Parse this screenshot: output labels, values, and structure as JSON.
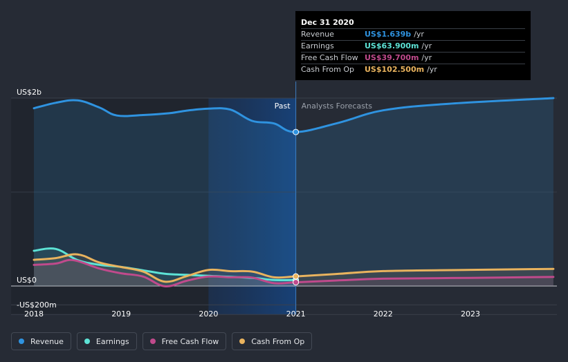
{
  "chart_data": {
    "type": "area",
    "x_axis": {
      "ticks": [
        "2018",
        "2019",
        "2020",
        "2021",
        "2022",
        "2023"
      ],
      "range": [
        "2018-01-01",
        "2023-12-31"
      ]
    },
    "y_axis": {
      "unit": "US$",
      "ticks": [
        {
          "value": 2000,
          "label": "US$2b"
        },
        {
          "value": 0,
          "label": "US$0"
        },
        {
          "value": -200,
          "label": "-US$200m"
        }
      ],
      "range": [
        -200,
        2000
      ]
    },
    "region_labels": {
      "past": "Past",
      "forecast": "Analysts Forecasts",
      "divider": 2021.0
    },
    "series": [
      {
        "name": "Revenue",
        "color": "#2f93e0",
        "points": [
          [
            2018.0,
            1892
          ],
          [
            2018.25,
            1950
          ],
          [
            2018.5,
            1976
          ],
          [
            2018.75,
            1900
          ],
          [
            2018.95,
            1815
          ],
          [
            2019.25,
            1820
          ],
          [
            2019.55,
            1839
          ],
          [
            2019.75,
            1867
          ],
          [
            2020.0,
            1888
          ],
          [
            2020.25,
            1878
          ],
          [
            2020.5,
            1757
          ],
          [
            2020.75,
            1730
          ],
          [
            2021.0,
            1639
          ],
          [
            2021.5,
            1740
          ],
          [
            2022.0,
            1870
          ],
          [
            2022.75,
            1940
          ],
          [
            2023.95,
            2000
          ]
        ]
      },
      {
        "name": "Earnings",
        "color": "#5de3d6",
        "points": [
          [
            2018.0,
            375
          ],
          [
            2018.25,
            395
          ],
          [
            2018.5,
            276
          ],
          [
            2018.75,
            226
          ],
          [
            2019.0,
            203
          ],
          [
            2019.25,
            167
          ],
          [
            2019.5,
            130
          ],
          [
            2019.75,
            119
          ],
          [
            2020.0,
            108
          ],
          [
            2020.5,
            86
          ],
          [
            2020.75,
            64
          ],
          [
            2021.0,
            63.9
          ]
        ]
      },
      {
        "name": "Free Cash Flow",
        "color": "#c04a8c",
        "points": [
          [
            2018.0,
            225
          ],
          [
            2018.25,
            239
          ],
          [
            2018.45,
            276
          ],
          [
            2018.75,
            186
          ],
          [
            2019.0,
            135
          ],
          [
            2019.25,
            101
          ],
          [
            2019.5,
            -3
          ],
          [
            2019.75,
            56
          ],
          [
            2020.0,
            101
          ],
          [
            2020.25,
            93
          ],
          [
            2020.5,
            90
          ],
          [
            2020.75,
            30
          ],
          [
            2021.0,
            39.7
          ],
          [
            2021.5,
            60
          ],
          [
            2022.0,
            78
          ],
          [
            2023.0,
            87
          ],
          [
            2023.95,
            96
          ]
        ]
      },
      {
        "name": "Cash From Op",
        "color": "#e9b35e",
        "points": [
          [
            2018.0,
            279
          ],
          [
            2018.25,
            297
          ],
          [
            2018.5,
            337
          ],
          [
            2018.75,
            250
          ],
          [
            2019.0,
            202
          ],
          [
            2019.25,
            154
          ],
          [
            2019.5,
            46
          ],
          [
            2019.75,
            105
          ],
          [
            2020.0,
            171
          ],
          [
            2020.25,
            158
          ],
          [
            2020.5,
            154
          ],
          [
            2020.75,
            93
          ],
          [
            2021.0,
            102.5
          ],
          [
            2021.5,
            130
          ],
          [
            2022.0,
            159
          ],
          [
            2023.0,
            172
          ],
          [
            2023.95,
            182
          ]
        ]
      }
    ]
  },
  "tooltip": {
    "date": "Dec 31 2020",
    "rows": [
      {
        "label": "Revenue",
        "value": "US$1.639b",
        "unit": "/yr",
        "color": "#2f93e0"
      },
      {
        "label": "Earnings",
        "value": "US$63.900m",
        "unit": "/yr",
        "color": "#5de3d6"
      },
      {
        "label": "Free Cash Flow",
        "value": "US$39.700m",
        "unit": "/yr",
        "color": "#c04a8c"
      },
      {
        "label": "Cash From Op",
        "value": "US$102.500m",
        "unit": "/yr",
        "color": "#e9b35e"
      }
    ]
  },
  "legend": [
    {
      "label": "Revenue",
      "color": "#2f93e0"
    },
    {
      "label": "Earnings",
      "color": "#5de3d6"
    },
    {
      "label": "Free Cash Flow",
      "color": "#c04a8c"
    },
    {
      "label": "Cash From Op",
      "color": "#e9b35e"
    }
  ]
}
